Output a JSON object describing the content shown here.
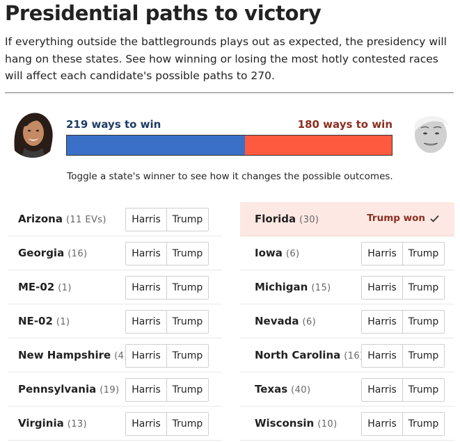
{
  "header": {
    "title": "Presidential paths to victory",
    "intro": "If everything outside the battlegrounds plays out as expected, the presidency will hang on these states. See how winning or losing the most hotly contested races will affect each candidate's possible paths to 270."
  },
  "summary": {
    "harris_ways": "219 ways to win",
    "trump_ways": "180 ways to win",
    "harris_count": 219,
    "trump_count": 180,
    "colors": {
      "harris": "#3a70c8",
      "trump": "#fd5a40"
    }
  },
  "toggle_note": "Toggle a state's winner to see how it changes the possible outcomes.",
  "buttons": {
    "harris": "Harris",
    "trump": "Trump"
  },
  "states_left": [
    {
      "name": "Arizona",
      "ev": "(11 EVs)"
    },
    {
      "name": "Georgia",
      "ev": "(16)"
    },
    {
      "name": "ME-02",
      "ev": "(1)"
    },
    {
      "name": "NE-02",
      "ev": "(1)"
    },
    {
      "name": "New Hampshire",
      "ev": "(4)"
    },
    {
      "name": "Pennsylvania",
      "ev": "(19)"
    },
    {
      "name": "Virginia",
      "ev": "(13)"
    }
  ],
  "states_right": [
    {
      "name": "Florida",
      "ev": "(30)",
      "won": "Trump won"
    },
    {
      "name": "Iowa",
      "ev": "(6)"
    },
    {
      "name": "Michigan",
      "ev": "(15)"
    },
    {
      "name": "Nevada",
      "ev": "(6)"
    },
    {
      "name": "North Carolina",
      "ev": "(16)"
    },
    {
      "name": "Texas",
      "ev": "(40)"
    },
    {
      "name": "Wisconsin",
      "ev": "(10)"
    }
  ]
}
